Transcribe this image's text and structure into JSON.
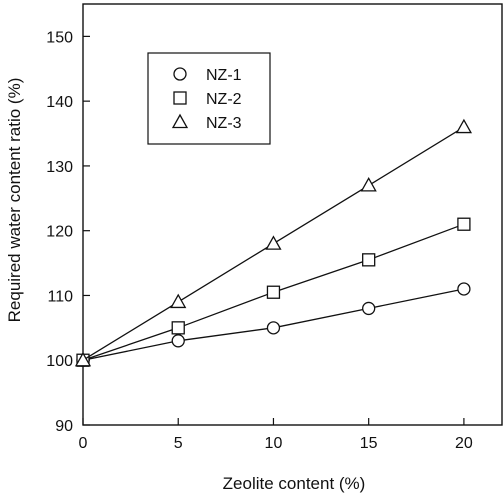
{
  "chart_data": {
    "type": "line",
    "xlabel": "Zeolite content (%)",
    "ylabel": "Required water content ratio (%)",
    "x": [
      0,
      5,
      10,
      15,
      20
    ],
    "xlim": [
      0,
      22
    ],
    "ylim": [
      90,
      155
    ],
    "xticks": [
      0,
      5,
      10,
      15,
      20
    ],
    "yticks": [
      90,
      100,
      110,
      120,
      130,
      140,
      150
    ],
    "grid": false,
    "legend_position": "top-left",
    "series": [
      {
        "name": "NZ-1",
        "marker": "circle",
        "values": [
          100,
          103,
          105,
          108,
          111
        ]
      },
      {
        "name": "NZ-2",
        "marker": "square",
        "values": [
          100,
          105,
          110.5,
          115.5,
          121
        ]
      },
      {
        "name": "NZ-3",
        "marker": "triangle",
        "values": [
          100,
          109,
          118,
          127,
          136
        ]
      }
    ],
    "colors": {
      "line": "#111111",
      "marker_fill": "#ffffff",
      "background": "#ffffff"
    }
  }
}
